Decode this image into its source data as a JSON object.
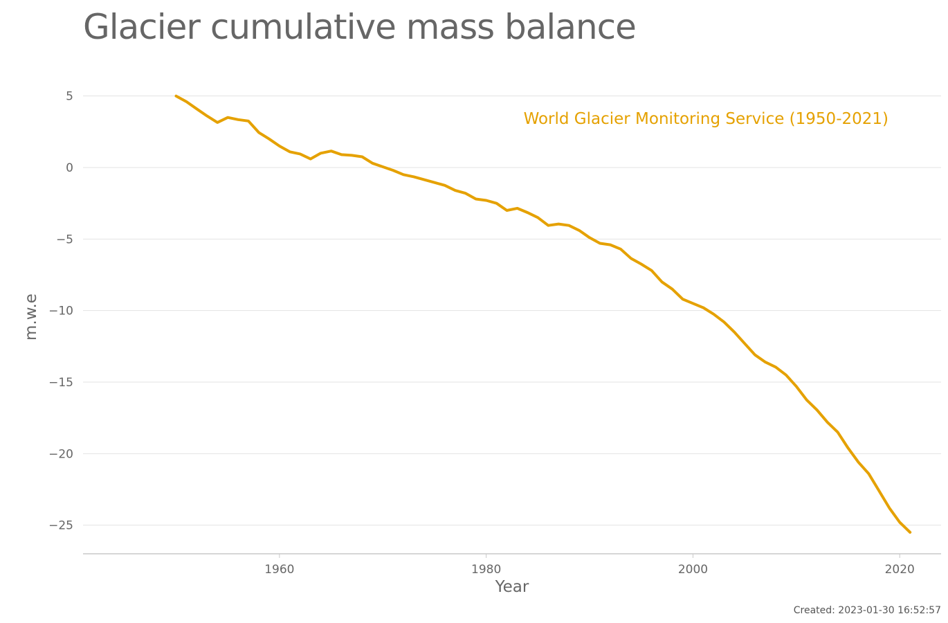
{
  "colors": {
    "series": "#E5A100",
    "title": "#666666",
    "grid": "#e3e3e3",
    "axis": "#c8c8c8",
    "tick_label": "#666666"
  },
  "footer": {
    "created": "Created: 2023-01-30 16:52:57"
  },
  "chart_data": {
    "type": "line",
    "title": "Glacier cumulative mass balance",
    "xlabel": "Year",
    "ylabel": "m.w.e",
    "xlim": [
      1941,
      2024
    ],
    "ylim": [
      -27,
      6
    ],
    "x_ticks": [
      1960,
      1980,
      2000,
      2020
    ],
    "y_ticks": [
      5,
      0,
      -5,
      -10,
      -15,
      -20,
      -25
    ],
    "x_tick_labels": [
      "1960",
      "1980",
      "2000",
      "2020"
    ],
    "y_tick_labels": [
      "5",
      "0",
      "−5",
      "−10",
      "−15",
      "−20",
      "−25"
    ],
    "grid": "horizontal",
    "legend": "inline label, top-right",
    "series": [
      {
        "name": "World Glacier Monitoring Service (1950-2021)",
        "x": [
          1950,
          1951,
          1952,
          1953,
          1954,
          1955,
          1956,
          1957,
          1958,
          1959,
          1960,
          1961,
          1962,
          1963,
          1964,
          1965,
          1966,
          1967,
          1968,
          1969,
          1970,
          1971,
          1972,
          1973,
          1974,
          1975,
          1976,
          1977,
          1978,
          1979,
          1980,
          1981,
          1982,
          1983,
          1984,
          1985,
          1986,
          1987,
          1988,
          1989,
          1990,
          1991,
          1992,
          1993,
          1994,
          1995,
          1996,
          1997,
          1998,
          1999,
          2000,
          2001,
          2002,
          2003,
          2004,
          2005,
          2006,
          2007,
          2008,
          2009,
          2010,
          2011,
          2012,
          2013,
          2014,
          2015,
          2016,
          2017,
          2018,
          2019,
          2020,
          2021
        ],
        "values": [
          5.0,
          4.6,
          4.1,
          3.6,
          3.15,
          3.5,
          3.35,
          3.25,
          2.45,
          2.0,
          1.5,
          1.1,
          0.95,
          0.6,
          1.0,
          1.15,
          0.9,
          0.85,
          0.75,
          0.3,
          0.05,
          -0.2,
          -0.5,
          -0.65,
          -0.85,
          -1.05,
          -1.25,
          -1.6,
          -1.8,
          -2.2,
          -2.3,
          -2.5,
          -3.0,
          -2.85,
          -3.15,
          -3.5,
          -4.05,
          -3.95,
          -4.05,
          -4.4,
          -4.9,
          -5.3,
          -5.4,
          -5.7,
          -6.35,
          -6.75,
          -7.2,
          -8.0,
          -8.5,
          -9.2,
          -9.5,
          -9.8,
          -10.25,
          -10.8,
          -11.5,
          -12.3,
          -13.1,
          -13.6,
          -13.95,
          -14.5,
          -15.3,
          -16.25,
          -16.95,
          -17.8,
          -18.5,
          -19.6,
          -20.6,
          -21.4,
          -22.6,
          -23.8,
          -24.8,
          -25.5
        ]
      }
    ]
  }
}
